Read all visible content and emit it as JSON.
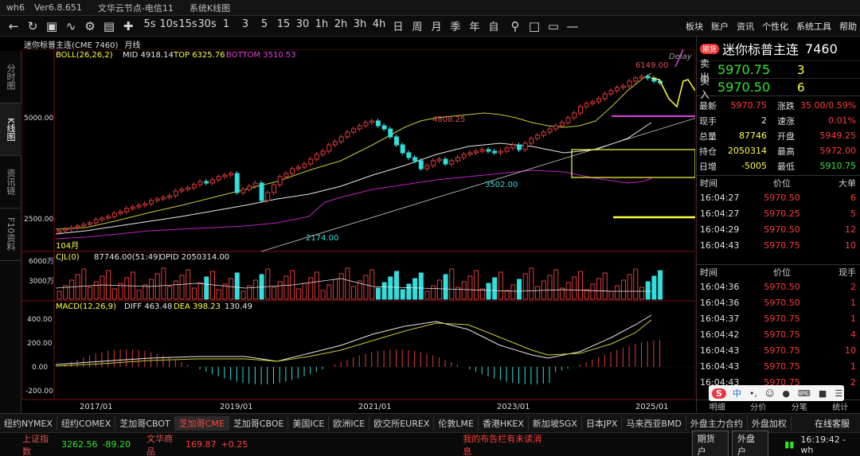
{
  "titlebar": {
    "app": "wh6",
    "version": "Ver6.8.651",
    "server": "文华云节点-电信11",
    "view": "系统K线图"
  },
  "toolbar": {
    "nav_icons": [
      "back-arrow-icon",
      "forward-arrow-icon",
      "refresh-icon",
      "fullscreen-icon",
      "trend-icon",
      "settings-icon",
      "chart-zoom-icon",
      "cross-icon"
    ],
    "periods": [
      "5s",
      "10s",
      "15s",
      "30s",
      "1",
      "3",
      "5",
      "15",
      "30",
      "1h",
      "2h",
      "3h",
      "4h",
      "日",
      "周",
      "月",
      "季",
      "年",
      "自"
    ],
    "right_menu": [
      "板块",
      "账户",
      "资讯",
      "个性化",
      "系统工具",
      "帮助"
    ]
  },
  "left_tabs": [
    "分时图",
    "K线图",
    "资讯链",
    "F10资料"
  ],
  "chart_header": {
    "title": "迷你标普主连(CME 7460)",
    "period": "月线",
    "boll_label": "BOLL(26,26,2)",
    "boll_mid": "MID 4918.14",
    "boll_top": "TOP 6325.76",
    "boll_bottom": "BOTTOM 3510.53"
  },
  "chart_labels": {
    "y_5000": "5000.00",
    "y_2500": "2500.00",
    "high_4808": "4808.25",
    "high_6149": "6149.00",
    "low_3502": "3502.00",
    "low_2174": "2174.00",
    "count": "104月",
    "delay": "Delay",
    "vol_label": "CJL(0)",
    "vol_val": "87746.00(51:49)",
    "opid": "OPID 2050314.00",
    "vol_6000": "6000万",
    "vol_3000": "3000万",
    "macd_label": "MACD(12,26,9)",
    "diff": "DIFF 463.48",
    "dea": "DEA 398.23",
    "macd_val": "130.49",
    "macd_y": [
      "400.00",
      "200.00",
      "0.00",
      "-200.00"
    ],
    "x_labels": [
      "2017/01",
      "2019/01",
      "2021/01",
      "2023/01",
      "2025/01"
    ]
  },
  "quote": {
    "badge": "期货",
    "name": "迷你标普主连",
    "code": "7460",
    "sell_label": "卖出",
    "sell_price": "5970.75",
    "sell_vol": "3",
    "buy_label": "买入",
    "buy_price": "5970.50",
    "buy_vol": "6",
    "rows": [
      {
        "l1": "最新",
        "v1": "5970.75",
        "l2": "涨跌",
        "v2": "35.00/0.59%"
      },
      {
        "l1": "现手",
        "v1": "2",
        "l2": "速涨",
        "v2": "0.01%"
      },
      {
        "l1": "总量",
        "v1": "87746",
        "l2": "开盘",
        "v2": "5949.25"
      },
      {
        "l1": "持仓",
        "v1": "2050314",
        "l2": "最高",
        "v2": "5972.00"
      },
      {
        "l1": "日增",
        "v1": "-5005",
        "l2": "最低",
        "v2": "5910.75"
      }
    ]
  },
  "big_ticks": {
    "head": [
      "时间",
      "价位",
      "大单"
    ],
    "rows": [
      {
        "t": "16:04:27",
        "p": "5970.50",
        "v": "6"
      },
      {
        "t": "16:04:27",
        "p": "5970.25",
        "v": "5"
      },
      {
        "t": "16:04:29",
        "p": "5970.50",
        "v": "12"
      },
      {
        "t": "16:04:43",
        "p": "5970.75",
        "v": "10"
      }
    ]
  },
  "detail_ticks": {
    "head": [
      "时间",
      "价位",
      "现手"
    ],
    "rows": [
      {
        "t": "16:04:36",
        "p": "5970.50",
        "v": "2"
      },
      {
        "t": "16:04:36",
        "p": "5970.50",
        "v": "1"
      },
      {
        "t": "16:04:37",
        "p": "5970.75",
        "v": "1"
      },
      {
        "t": "16:04:42",
        "p": "5970.75",
        "v": "4"
      },
      {
        "t": "16:04:43",
        "p": "5970.75",
        "v": "10"
      },
      {
        "t": "16:04:43",
        "p": "5970.75",
        "v": "1"
      },
      {
        "t": "16:04:43",
        "p": "5970.75",
        "v": "2"
      }
    ]
  },
  "rp_tabs": [
    "明细",
    "分价",
    "分笔",
    "统计"
  ],
  "exchanges": [
    "纽约NYMEX",
    "纽约COMEX",
    "芝加哥CBOT",
    "芝加哥CME",
    "芝加哥CBOE",
    "美国ICE",
    "欧洲ICE",
    "欧交所EUREX",
    "伦敦LME",
    "香港HKEX",
    "新加坡SGX",
    "日本JPX",
    "马来西亚BMD",
    "外盘主力合约",
    "外盘加权"
  ],
  "online_service": "在线客服",
  "status": {
    "idx1_name": "上证指数",
    "idx1_val": "3262.56",
    "idx1_chg": "-89.20",
    "idx2_name": "文华商品",
    "idx2_val": "169.87",
    "idx2_chg": "+0.25",
    "notice": "我的布告栏有未读消息",
    "btn_futures": "期货户",
    "btn_foreign": "外盘户",
    "clock": "16:19:42 - wh"
  },
  "ime": {
    "lang": "中"
  }
}
